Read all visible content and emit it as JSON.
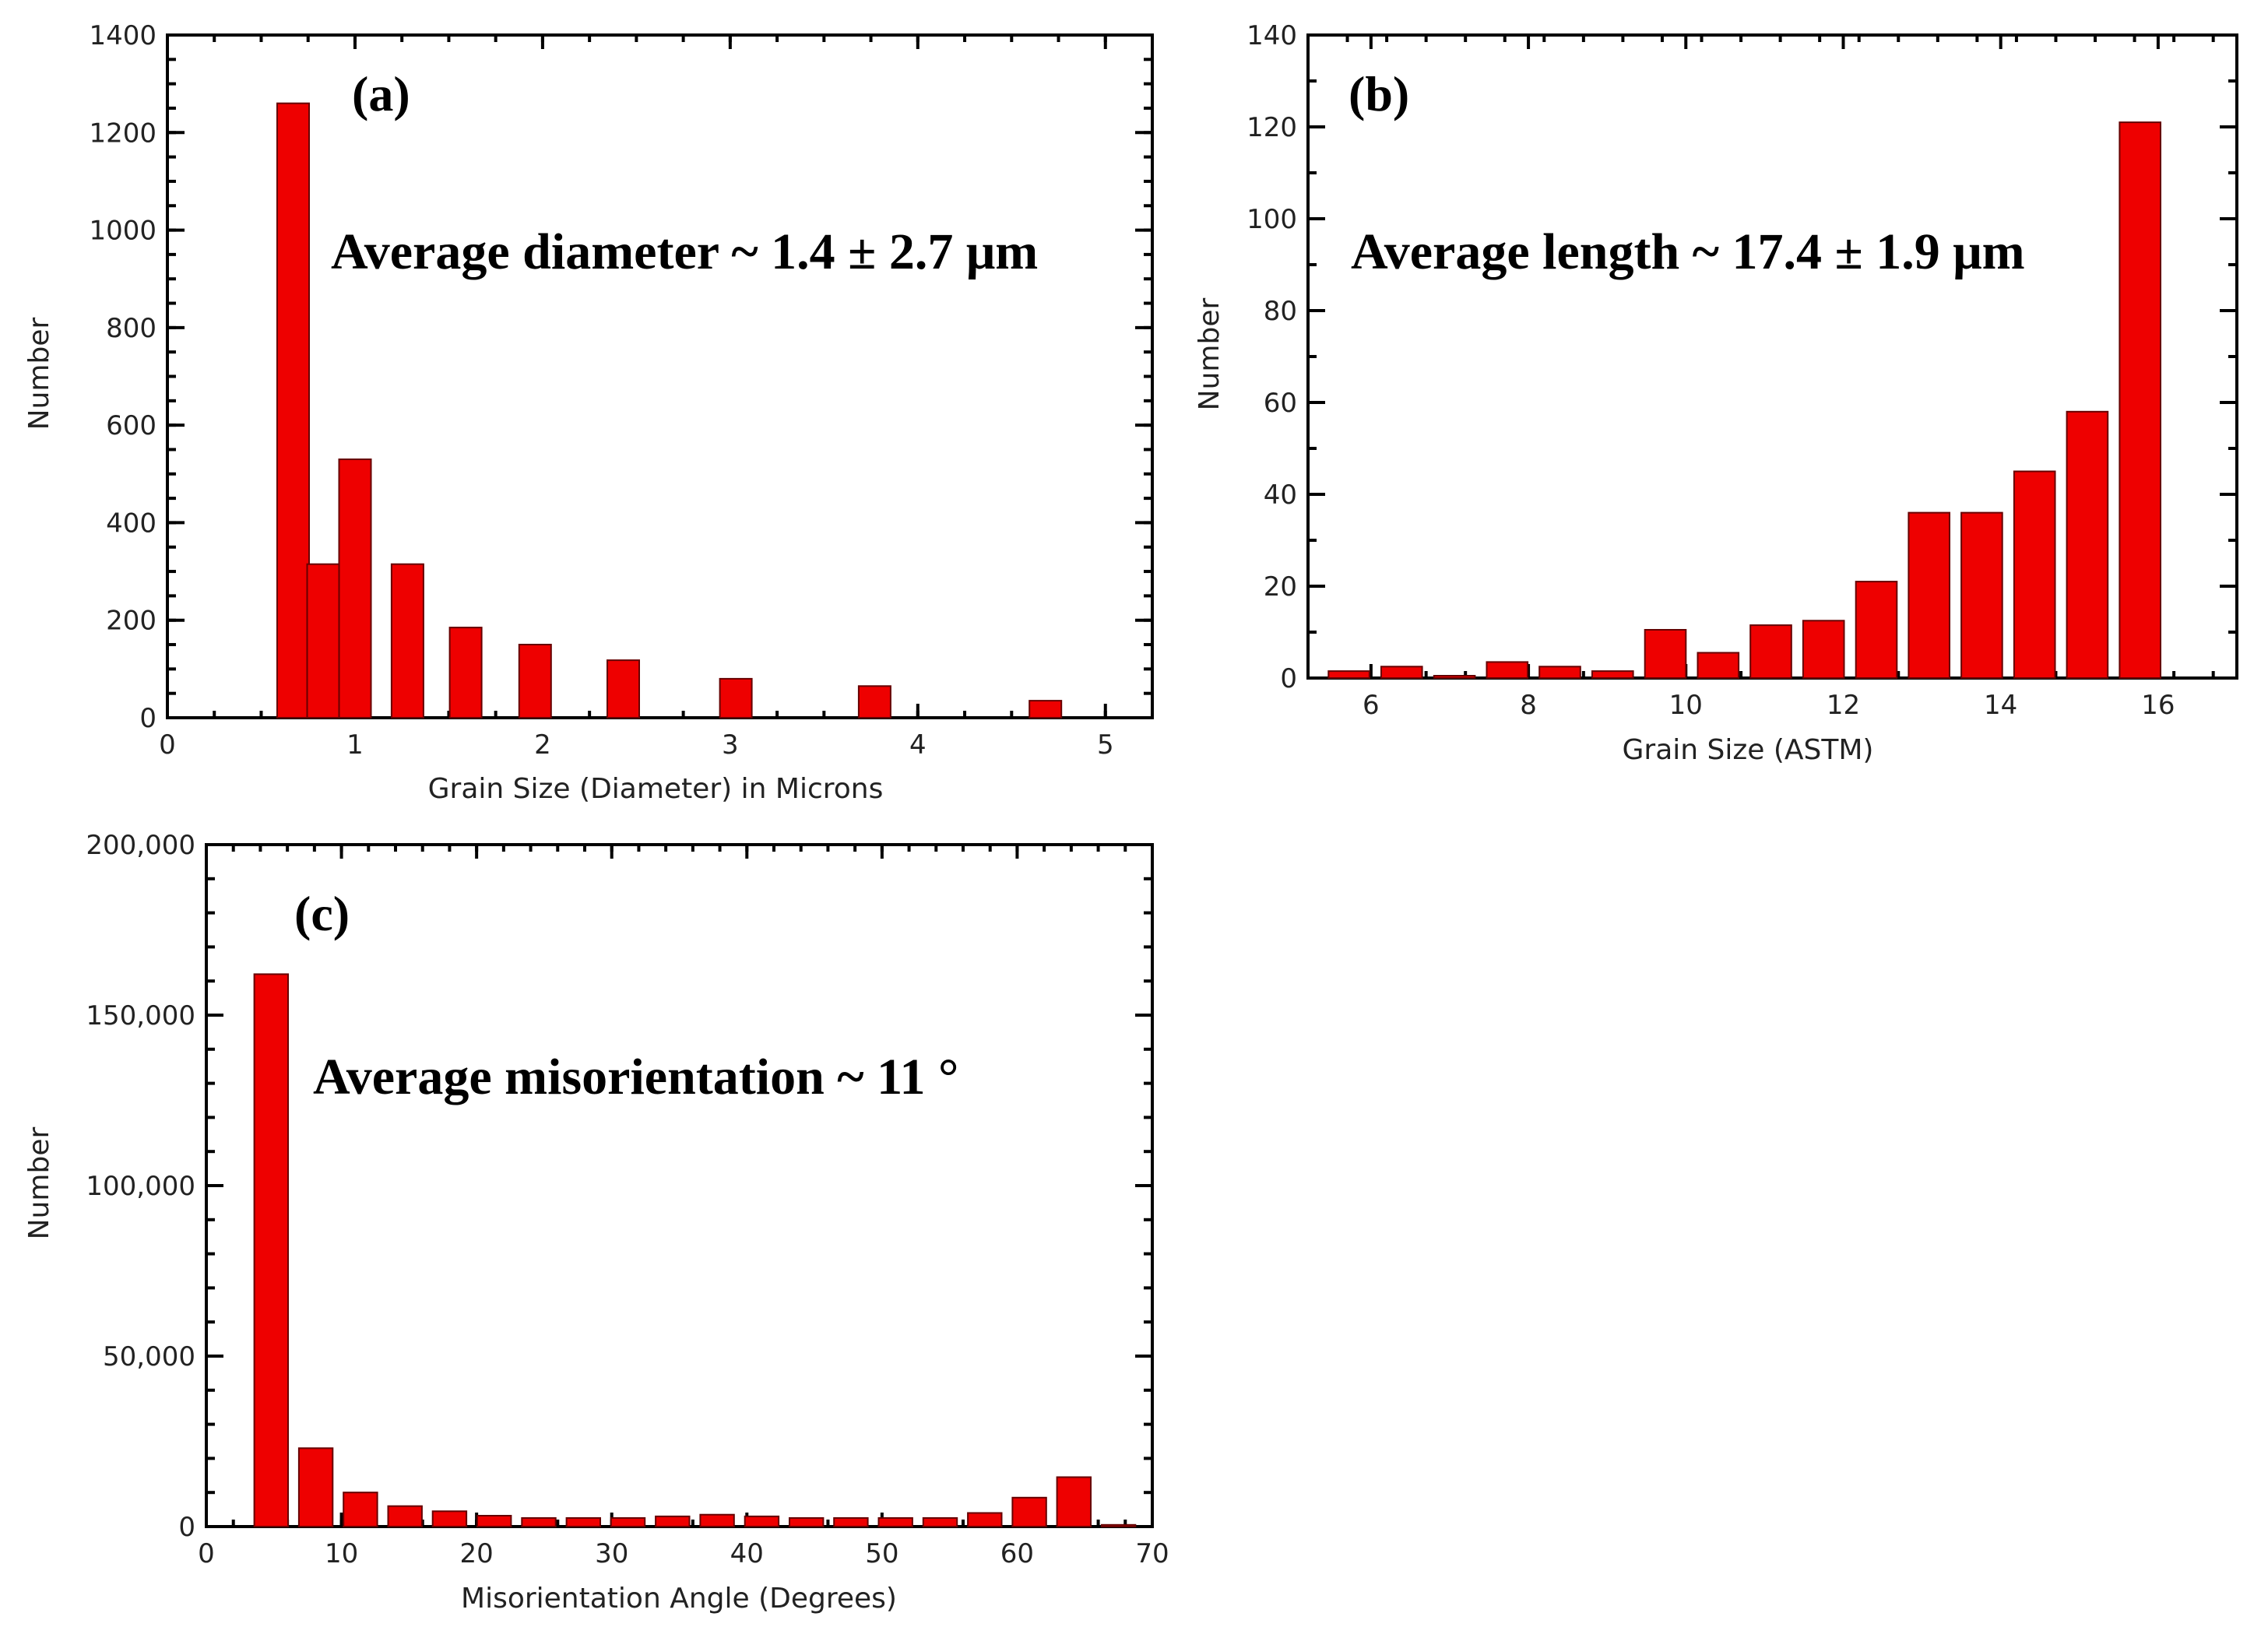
{
  "chart_data": [
    {
      "id": "a",
      "type": "bar",
      "panel_tag": "(a)",
      "annotation": "Average diameter ~ 1.4 ± 2.7 μm",
      "xlabel": "Grain Size (Diameter) in Microns",
      "ylabel": "Number",
      "xlim": [
        0,
        5.25
      ],
      "ylim": [
        0,
        1400
      ],
      "xticks": [
        0,
        1,
        2,
        3,
        4,
        5
      ],
      "xtick_labels": [
        "0",
        "1",
        "2",
        "3",
        "4",
        "5"
      ],
      "yticks": [
        0,
        200,
        400,
        600,
        800,
        1000,
        1200,
        1400
      ],
      "ytick_labels": [
        "0",
        "200",
        "400",
        "600",
        "800",
        "1000",
        "1200",
        "1400"
      ],
      "bar_width": 0.17,
      "x": [
        0.67,
        0.83,
        1.0,
        1.28,
        1.59,
        1.96,
        2.43,
        3.03,
        3.77,
        4.68
      ],
      "values": [
        1260,
        315,
        530,
        315,
        185,
        150,
        118,
        80,
        65,
        35
      ],
      "color": "#ee0000"
    },
    {
      "id": "b",
      "type": "bar",
      "panel_tag": "(b)",
      "annotation": "Average length ~ 17.4 ± 1.9 μm",
      "xlabel": "Grain Size (ASTM)",
      "ylabel": "Number",
      "xlim": [
        5.2,
        17.0
      ],
      "ylim": [
        0,
        140
      ],
      "xticks": [
        6,
        8,
        10,
        12,
        14,
        16
      ],
      "xtick_labels": [
        "6",
        "8",
        "10",
        "12",
        "14",
        "16"
      ],
      "yticks": [
        0,
        20,
        40,
        60,
        80,
        100,
        120,
        140
      ],
      "ytick_labels": [
        "0",
        "20",
        "40",
        "60",
        "80",
        "100",
        "120",
        "140"
      ],
      "bar_width": 0.52,
      "x": [
        5.72,
        6.39,
        7.06,
        7.73,
        8.4,
        9.07,
        9.74,
        10.41,
        11.08,
        11.75,
        12.42,
        13.09,
        13.76,
        14.43,
        15.1,
        15.77
      ],
      "values": [
        1.5,
        2.5,
        0.5,
        3.5,
        2.5,
        1.5,
        10.5,
        5.5,
        11.5,
        12.5,
        21,
        36,
        36,
        45,
        58,
        121
      ],
      "color": "#ee0000"
    },
    {
      "id": "c",
      "type": "bar",
      "panel_tag": "(c)",
      "annotation": "Average misorientation ~ 11 °",
      "xlabel": "Misorientation Angle (Degrees)",
      "ylabel": "Number",
      "xlim": [
        0,
        70
      ],
      "ylim": [
        0,
        200000
      ],
      "xticks": [
        0,
        10,
        20,
        30,
        40,
        50,
        60,
        70
      ],
      "xtick_labels": [
        "0",
        "10",
        "20",
        "30",
        "40",
        "50",
        "60",
        "70"
      ],
      "yticks": [
        0,
        50000,
        100000,
        150000,
        200000
      ],
      "ytick_labels": [
        "0",
        "50,000",
        "100,000",
        "150,000",
        "200,000"
      ],
      "bar_width": 2.5,
      "x": [
        4.8,
        8.1,
        11.4,
        14.7,
        18.0,
        21.3,
        24.6,
        27.9,
        31.2,
        34.5,
        37.8,
        41.1,
        44.4,
        47.7,
        51.0,
        54.3,
        57.6,
        60.9,
        64.2,
        67.5
      ],
      "values": [
        162000,
        23000,
        10000,
        6000,
        4500,
        3200,
        2500,
        2500,
        2500,
        3000,
        3500,
        3000,
        2500,
        2500,
        2500,
        2500,
        4000,
        8500,
        14500,
        500
      ],
      "color": "#ee0000"
    }
  ]
}
